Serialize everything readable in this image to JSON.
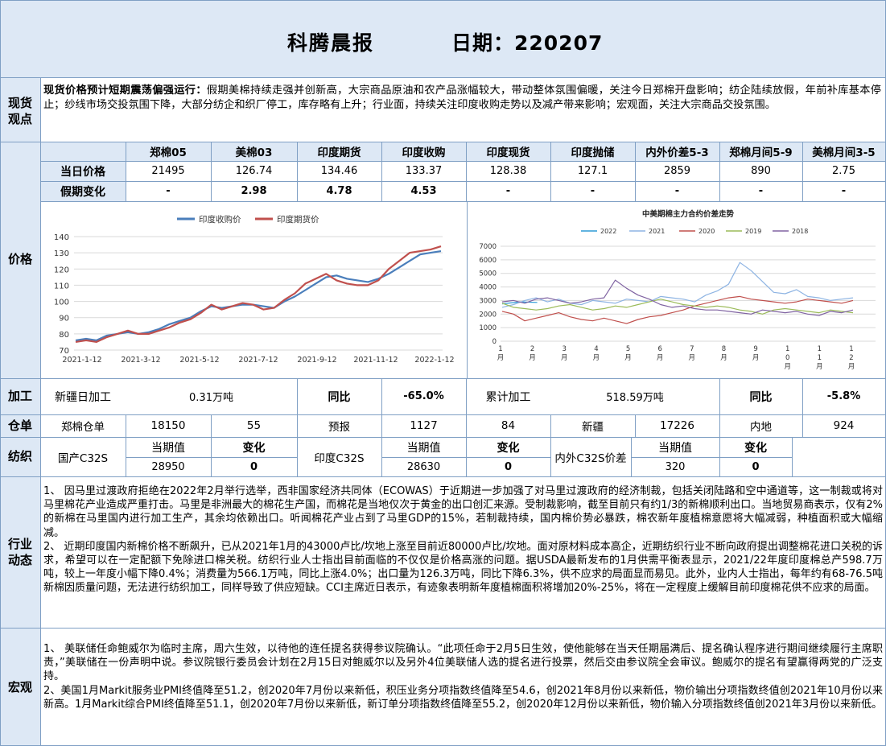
{
  "header": {
    "title": "科腾晨报",
    "date_label": "日期：220207"
  },
  "sections": {
    "spot": "现货观点",
    "price": "价格",
    "processing": "加工",
    "warehouse": "仓单",
    "textile": "纺织",
    "industry": "行业动态",
    "macro": "宏观"
  },
  "spot_view": {
    "headline": "现货价格预计短期震荡偏强运行：",
    "body": "假期美棉持续走强并创新高，大宗商品原油和农产品涨幅较大，带动整体氛围偏暖，关注今日郑棉开盘影响；纺企陆续放假，年前补库基本停止；纱线市场交投氛围下降，大部分纺企和织厂停工，库存略有上升；行业面，持续关注印度收购走势以及减产带来影响；宏观面，关注大宗商品交投氛围。"
  },
  "price_table": {
    "columns": [
      "郑棉05",
      "美棉03",
      "印度期货",
      "印度收购",
      "印度现货",
      "印度抛储",
      "内外价差5-3",
      "郑棉月间5-9",
      "美棉月间3-5"
    ],
    "rows": [
      {
        "label": "当日价格",
        "values": [
          "21495",
          "126.74",
          "134.46",
          "133.37",
          "128.38",
          "127.1",
          "2859",
          "890",
          "2.75"
        ]
      },
      {
        "label": "假期变化",
        "values": [
          "-",
          "2.98",
          "4.78",
          "4.53",
          "-",
          "-",
          "-",
          "-",
          "-"
        ]
      }
    ]
  },
  "chart_data": [
    {
      "type": "line",
      "title": "",
      "legend_position": "top",
      "series": [
        {
          "name": "印度收购价",
          "color": "#4a7ebb",
          "values": [
            76,
            77,
            76,
            79,
            80,
            81,
            80,
            81,
            83,
            86,
            88,
            90,
            94,
            97,
            96,
            97,
            98,
            98,
            97,
            96,
            100,
            103,
            107,
            111,
            115,
            116,
            114,
            113,
            112,
            114,
            117,
            121,
            125,
            129,
            130,
            131
          ]
        },
        {
          "name": "印度期货价",
          "color": "#c0504d",
          "values": [
            75,
            76,
            75,
            78,
            80,
            82,
            80,
            80,
            82,
            84,
            87,
            89,
            93,
            98,
            95,
            97,
            99,
            98,
            95,
            96,
            101,
            105,
            111,
            114,
            117,
            113,
            111,
            110,
            110,
            113,
            120,
            125,
            130,
            131,
            132,
            134
          ]
        }
      ],
      "x_ticks": [
        "2021-1-12",
        "2021-3-12",
        "2021-5-12",
        "2021-7-12",
        "2021-9-12",
        "2021-11-12",
        "2022-1-12"
      ],
      "y_ticks": [
        "70",
        "80",
        "90",
        "100",
        "110",
        "120",
        "130",
        "140"
      ],
      "ylim": [
        70,
        140
      ],
      "grid": true
    },
    {
      "type": "line",
      "title": "中美期棉主力合约价差走势",
      "legend_position": "top",
      "series": [
        {
          "name": "2022",
          "color": "#2e9bd6",
          "values": [
            2750,
            2900,
            2859
          ]
        },
        {
          "name": "2021",
          "color": "#8eb4e3",
          "values": [
            2500,
            2700,
            3000,
            3200,
            2900,
            3100,
            2800,
            2700,
            3000,
            2900,
            2800,
            3100,
            3000,
            2900,
            3300,
            3200,
            3100,
            2900,
            3400,
            3700,
            4200,
            5800,
            5200,
            4400,
            3600,
            3500,
            3800,
            3300,
            3200,
            3000,
            3100,
            3200
          ]
        },
        {
          "name": "2020",
          "color": "#c0504d",
          "values": [
            2200,
            2000,
            1500,
            1700,
            1900,
            2100,
            1800,
            1600,
            1500,
            1700,
            1500,
            1300,
            1600,
            1800,
            1900,
            2100,
            2300,
            2600,
            2800,
            3000,
            3200,
            3300,
            3100,
            3000,
            2900,
            2800,
            2900,
            3100,
            3000,
            2900,
            2800,
            3000
          ]
        },
        {
          "name": "2019",
          "color": "#9bbb59",
          "values": [
            2800,
            2500,
            2400,
            2300,
            2400,
            2600,
            2700,
            2500,
            2300,
            2400,
            2600,
            2500,
            2700,
            2900,
            3100,
            2900,
            2700,
            2600,
            2500,
            2600,
            2500,
            2300,
            2200,
            2000,
            2300,
            2400,
            2300,
            2200,
            2100,
            2300,
            2200,
            2100
          ]
        },
        {
          "name": "2018",
          "color": "#8064a2",
          "values": [
            2900,
            3000,
            2800,
            3100,
            3200,
            3000,
            2800,
            2900,
            3100,
            3200,
            4500,
            3900,
            3400,
            3100,
            2700,
            2500,
            2600,
            2400,
            2300,
            2300,
            2200,
            2100,
            2000,
            2300,
            2200,
            2100,
            2200,
            2000,
            1900,
            2200,
            2100,
            2300
          ]
        }
      ],
      "x_ticks": [
        [
          "1",
          "月"
        ],
        [
          "2",
          "月"
        ],
        [
          "3",
          "月"
        ],
        [
          "4",
          "月"
        ],
        [
          "5",
          "月"
        ],
        [
          "6",
          "月"
        ],
        [
          "7",
          "月"
        ],
        [
          "8",
          "月"
        ],
        [
          "9",
          "月"
        ],
        [
          "1",
          "0",
          "月"
        ],
        [
          "1",
          "1",
          "月"
        ],
        [
          "1",
          "2",
          "月"
        ]
      ],
      "y_ticks": [
        "0",
        "1000",
        "2000",
        "3000",
        "4000",
        "5000",
        "6000",
        "7000"
      ],
      "ylim": [
        0,
        7000
      ],
      "grid": true
    }
  ],
  "processing": {
    "xinjiang_label": "新疆日加工",
    "xinjiang_value": "0.31万吨",
    "yoy1_label": "同比",
    "yoy1_value": "-65.0%",
    "cumulative_label": "累计加工",
    "cumulative_value": "518.59万吨",
    "yoy2_label": "同比",
    "yoy2_value": "-5.8%"
  },
  "warehouse": {
    "cells": [
      "郑棉仓单",
      "18150",
      "55",
      "预报",
      "1127",
      "84",
      "新疆",
      "17226",
      "内地",
      "924"
    ]
  },
  "textile": {
    "groups": [
      {
        "name": "国产C32S",
        "current_label": "当期值",
        "change_label": "变化",
        "current": "28950",
        "change": "0"
      },
      {
        "name": "印度C32S",
        "current_label": "当期值",
        "change_label": "变化",
        "current": "28630",
        "change": "0"
      },
      {
        "name": "内外C32S价差",
        "current_label": "当期值",
        "change_label": "变化",
        "current": "320",
        "change": "0"
      }
    ]
  },
  "industry_news": [
    "1、  因马里过渡政府拒绝在2022年2月举行选举，西非国家经济共同体（ECOWAS）于近期进一步加强了对马里过渡政府的经济制裁，包括关闭陆路和空中通道等，这一制裁或将对马里棉花产业造成严重打击。马里是非洲最大的棉花生产国，而棉花是当地仅次于黄金的出口创汇来源。受制裁影响，截至目前只有约1/3的新棉顺利出口。当地贸易商表示，仅有2%的新棉在马里国内进行加工生产，其余均依赖出口。听闻棉花产业占到了马里GDP的15%，若制裁持续，国内棉价势必暴跌，棉农新年度植棉意愿将大幅减弱，种植面积或大幅缩减。",
    "2、  近期印度国内新棉价格不断飙升，已从2021年1月的43000卢比/坎地上涨至目前近80000卢比/坎地。面对原材料成本高企，近期纺织行业不断向政府提出调整棉花进口关税的诉求，希望可以在一定配额下免除进口棉关税。纺织行业人士指出目前面临的不仅仅是价格高涨的问题。据USDA最新发布的1月供需平衡表显示，2021/22年度印度棉总产598.7万吨，较上一年度小幅下降0.4%；消费量为566.1万吨，同比上涨4.0%；出口量为126.3万吨，同比下降6.3%，供不应求的局面显而易见。此外，业内人士指出，每年约有68-76.5吨新棉因质量问题，无法进行纺织加工，同样导致了供应短缺。CCI主席近日表示，有迹象表明新年度植棉面积将增加20%-25%，将在一定程度上缓解目前印度棉花供不应求的局面。"
  ],
  "macro_news": [
    "1、  美联储任命鲍威尔为临时主席，周六生效，以待他的连任提名获得参议院确认。“此项任命于2月5日生效，使他能够在当天任期届满后、提名确认程序进行期间继续履行主席职责，”美联储在一份声明中说。参议院银行委员会计划在2月15日对鲍威尔以及另外4位美联储人选的提名进行投票，然后交由参议院全会审议。鲍威尔的提名有望赢得两党的广泛支持。",
    "2、美国1月Markit服务业PMI终值降至51.2，创2020年7月份以来新低，积压业务分项指数终值降至54.6，创2021年8月份以来新低，物价输出分项指数终值创2021年10月份以来新高。1月Markit综合PMI终值降至51.1，创2020年7月份以来新低，新订单分项指数终值降至55.2，创2020年12月份以来新低，物价输入分项指数终值创2021年3月份以来新低。"
  ]
}
